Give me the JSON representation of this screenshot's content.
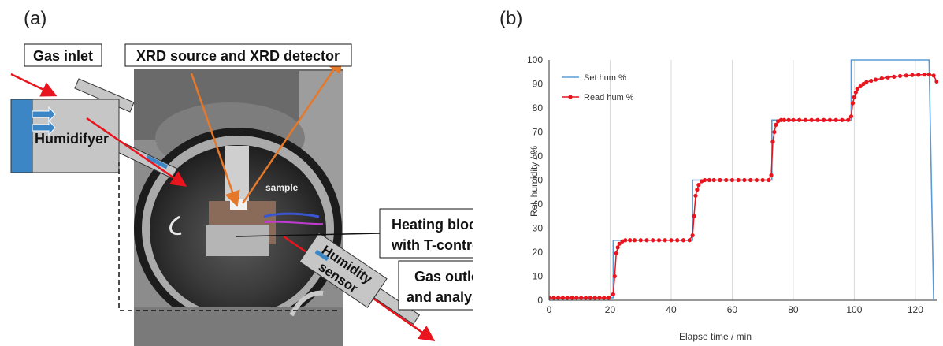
{
  "panel_a": {
    "label": "(a)",
    "callouts": {
      "gas_inlet": "Gas inlet",
      "xrd": "XRD source and XRD detector",
      "humidifyer": "Humidifyer",
      "sample": "sample",
      "heating_line1": "Heating block",
      "heating_line2": "with T-control",
      "humidity_line1": "Humidity",
      "humidity_line2": "sensor",
      "outlet_line1": "Gas outlet",
      "outlet_line2": "and analysis"
    },
    "colors": {
      "arrow_red": "#e8141e",
      "arrow_orange": "#e6782a",
      "box_gray": "#c6c6c6",
      "humidifier_blue": "#3d86c6"
    }
  },
  "chart_data": {
    "panel_label": "(b)",
    "type": "line",
    "xlabel": "Elapse time / min",
    "ylabel": "Rel. humidity / %",
    "xlim": [
      0,
      127
    ],
    "ylim": [
      0,
      100
    ],
    "xticks": [
      "0",
      "20",
      "40",
      "60",
      "80",
      "100",
      "120"
    ],
    "yticks": [
      "0",
      "10",
      "20",
      "30",
      "40",
      "50",
      "60",
      "70",
      "80",
      "90",
      "100"
    ],
    "grid": "vertical",
    "legend_position": "top-left",
    "series": [
      {
        "name": "Set hum %",
        "color": "#5b9bd5",
        "marker": "none",
        "x": [
          0,
          21,
          21,
          47,
          47,
          73,
          73,
          99,
          99,
          124.5,
          126
        ],
        "y": [
          1,
          1,
          25,
          25,
          50,
          50,
          75,
          75,
          100,
          100,
          0
        ]
      },
      {
        "name": "Read hum %",
        "color": "#e8141e",
        "marker": "circle",
        "x": [
          0,
          1.5,
          3,
          4.5,
          6,
          7.5,
          9,
          10.5,
          12,
          13.5,
          15,
          16.5,
          18,
          19.5,
          21,
          21.5,
          22,
          22.5,
          23,
          24,
          25,
          26.5,
          28,
          30,
          32,
          34,
          36,
          38,
          40,
          42,
          44,
          46,
          47,
          47.5,
          48,
          48.5,
          49,
          50,
          51,
          52.5,
          54,
          56,
          58,
          60,
          62,
          64,
          66,
          68,
          70,
          72,
          72.8,
          73.3,
          73.8,
          74.3,
          75,
          76,
          77,
          78.5,
          80,
          82,
          84,
          86,
          88,
          90,
          92,
          94,
          96,
          98,
          99,
          99.5,
          100,
          100.5,
          101,
          102,
          103,
          104,
          105.5,
          107,
          109,
          111,
          113,
          115,
          117,
          119,
          121,
          123,
          124.5,
          126,
          127
        ],
        "y": [
          1,
          1,
          1,
          1,
          1,
          1,
          1,
          1,
          1,
          1,
          1,
          1,
          1,
          1,
          2.5,
          10,
          19.5,
          22,
          23.5,
          24.5,
          25,
          25,
          25,
          25,
          25,
          25,
          25,
          25,
          25,
          25,
          25,
          25,
          27,
          35,
          43.5,
          46,
          48,
          49.5,
          50,
          50,
          50,
          50,
          50,
          50,
          50,
          50,
          50,
          50,
          50,
          50,
          52,
          66,
          70,
          73,
          74.5,
          75,
          75,
          75,
          75,
          75,
          75,
          75,
          75,
          75,
          75,
          75,
          75,
          75,
          76.5,
          82,
          84.5,
          86.5,
          88,
          89,
          90,
          90.8,
          91.3,
          91.8,
          92.3,
          92.7,
          93,
          93.3,
          93.5,
          93.7,
          93.8,
          93.9,
          94,
          93.5,
          91
        ]
      }
    ]
  }
}
